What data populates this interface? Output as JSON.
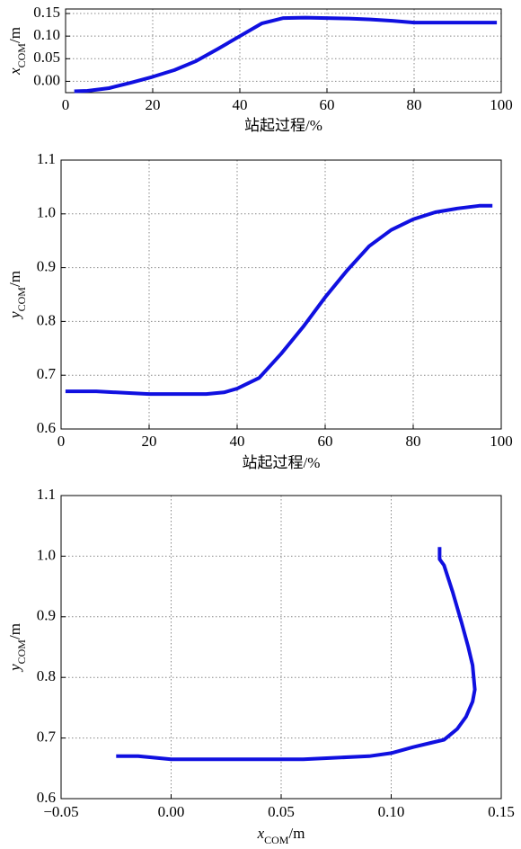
{
  "chart_data": [
    {
      "type": "line",
      "xlabel": "站起过程/%",
      "ylabel": [
        "x",
        "COM",
        "/m"
      ],
      "x": [
        2,
        5,
        10,
        15,
        20,
        25,
        30,
        35,
        40,
        45,
        50,
        55,
        60,
        65,
        70,
        75,
        80,
        90,
        99
      ],
      "series": [
        {
          "color": "#1010e0",
          "values": [
            -0.022,
            -0.021,
            -0.015,
            -0.003,
            0.01,
            0.025,
            0.045,
            0.072,
            0.1,
            0.128,
            0.14,
            0.141,
            0.14,
            0.139,
            0.137,
            0.134,
            0.13,
            0.13,
            0.13
          ]
        }
      ],
      "xlim": [
        0,
        100
      ],
      "xticks": [
        0,
        20,
        40,
        60,
        80,
        100
      ],
      "ylim": [
        -0.025,
        0.16
      ],
      "yticks": [
        {
          "value": 0,
          "label": "0.00"
        },
        {
          "value": 0.05,
          "label": "0.05"
        },
        {
          "value": 0.1,
          "label": "0.10"
        },
        {
          "value": 0.15,
          "label": "0.15"
        }
      ],
      "grid": true
    },
    {
      "type": "line",
      "xlabel": "站起过程/%",
      "ylabel": [
        "y",
        "COM",
        "/m"
      ],
      "x": [
        1,
        8,
        15,
        20,
        27,
        33,
        37,
        40,
        45,
        50,
        55,
        60,
        65,
        70,
        75,
        80,
        85,
        90,
        95,
        98
      ],
      "series": [
        {
          "color": "#1010e0",
          "values": [
            0.67,
            0.67,
            0.667,
            0.665,
            0.665,
            0.665,
            0.668,
            0.675,
            0.695,
            0.74,
            0.79,
            0.845,
            0.895,
            0.94,
            0.97,
            0.99,
            1.003,
            1.01,
            1.015,
            1.015
          ]
        }
      ],
      "xlim": [
        0,
        100
      ],
      "xticks": [
        0,
        20,
        40,
        60,
        80,
        100
      ],
      "ylim": [
        0.6,
        1.1
      ],
      "yticks": [
        0.6,
        0.7,
        0.8,
        0.9,
        {
          "value": 1.0,
          "label": "1.0"
        },
        1.1
      ],
      "grid": true
    },
    {
      "type": "line",
      "xlabel": [
        "x",
        "COM",
        "/m"
      ],
      "ylabel": [
        "y",
        "COM",
        "/m"
      ],
      "x": [
        -0.025,
        -0.015,
        0,
        0.03,
        0.06,
        0.09,
        0.1,
        0.11,
        0.118,
        0.124,
        0.13,
        0.134,
        0.137,
        0.138,
        0.137,
        0.135,
        0.132,
        0.128,
        0.124,
        0.122,
        0.122
      ],
      "series": [
        {
          "color": "#1010e0",
          "values": [
            0.67,
            0.67,
            0.665,
            0.665,
            0.665,
            0.67,
            0.675,
            0.685,
            0.692,
            0.697,
            0.715,
            0.735,
            0.76,
            0.78,
            0.82,
            0.85,
            0.89,
            0.94,
            0.985,
            0.995,
            1.015
          ]
        }
      ],
      "xlim": [
        -0.05,
        0.15
      ],
      "xticks": [
        {
          "value": -0.05,
          "label": "−0.05"
        },
        {
          "value": 0,
          "label": "0.00"
        },
        {
          "value": 0.05,
          "label": "0.05"
        },
        {
          "value": 0.1,
          "label": "0.10"
        },
        {
          "value": 0.15,
          "label": "0.15"
        }
      ],
      "ylim": [
        0.6,
        1.1
      ],
      "yticks": [
        0.6,
        0.7,
        0.8,
        0.9,
        {
          "value": 1.0,
          "label": "1.0"
        },
        1.1
      ],
      "grid": true
    }
  ]
}
